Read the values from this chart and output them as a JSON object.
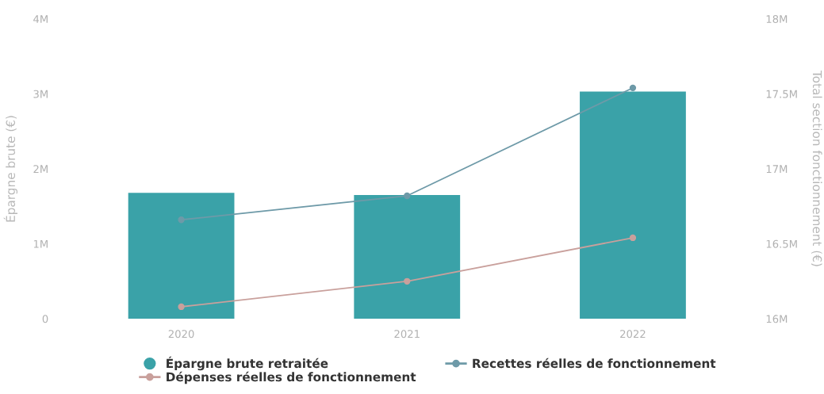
{
  "chart_data": {
    "type": "bar",
    "categories": [
      "2020",
      "2021",
      "2022"
    ],
    "series": [
      {
        "name": "Épargne brute retraitée",
        "color": "#3aa2a8",
        "values": [
          1.68,
          1.65,
          3.03
        ]
      },
      {
        "name": "Recettes réelles de fonctionnement",
        "type": "line",
        "axis": "y2",
        "color": "#6e9aa8",
        "values": [
          16.66,
          16.82,
          17.54
        ]
      },
      {
        "name": "Dépenses réelles de fonctionnement",
        "type": "line",
        "axis": "y2",
        "color": "#c9a09c",
        "values": [
          16.08,
          16.25,
          16.54
        ]
      }
    ],
    "ylabel": "Épargne brute (€)",
    "y2label": "Total section fonctionnement (€)",
    "ylim": [
      0,
      4
    ],
    "yticks": [
      {
        "value": 0,
        "label": "0"
      },
      {
        "value": 1,
        "label": "1M"
      },
      {
        "value": 2,
        "label": "2M"
      },
      {
        "value": 3,
        "label": "3M"
      },
      {
        "value": 4,
        "label": "4M"
      }
    ],
    "y2lim": [
      16,
      18
    ],
    "y2ticks": [
      {
        "value": 16,
        "label": "16M"
      },
      {
        "value": 16.5,
        "label": "16.5M"
      },
      {
        "value": 17,
        "label": "17M"
      },
      {
        "value": 17.5,
        "label": "17.5M"
      },
      {
        "value": 18,
        "label": "18M"
      }
    ],
    "legend": "bottom",
    "marker": "circle",
    "line_style": "solid",
    "grid": false
  }
}
